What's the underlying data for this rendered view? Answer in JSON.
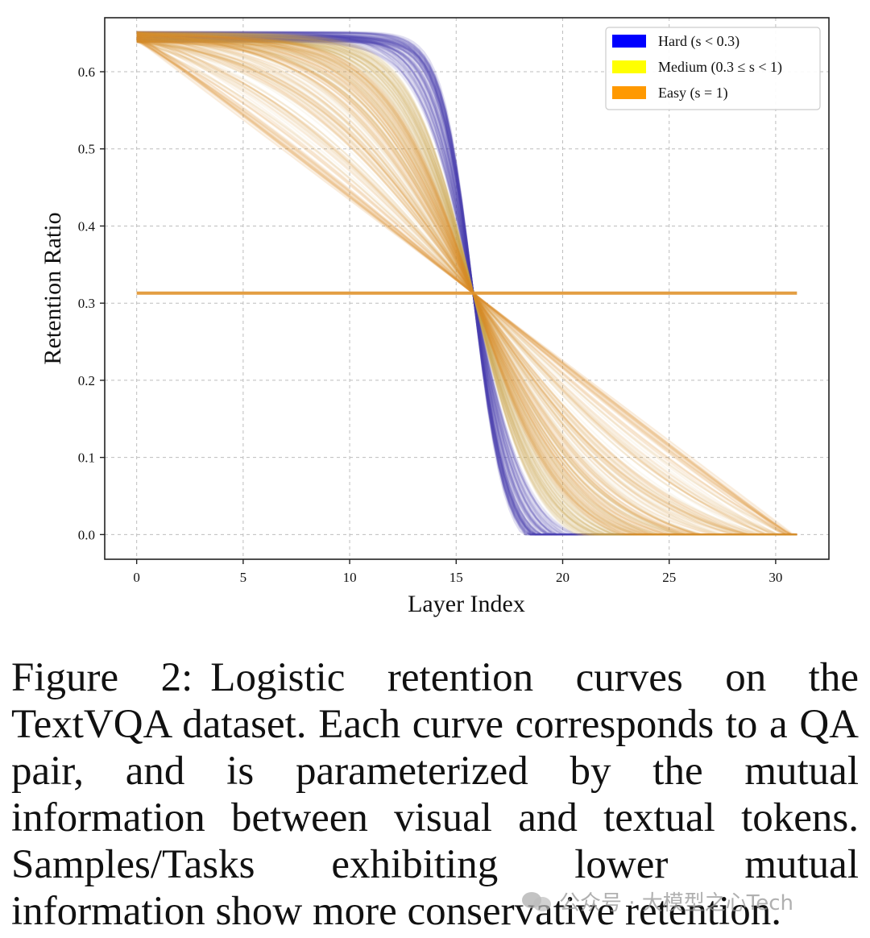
{
  "chart_data": {
    "type": "line",
    "xlabel": "Layer Index",
    "ylabel": "Retention Ratio",
    "xlim": [
      -1.5,
      32.5
    ],
    "ylim": [
      -0.032,
      0.67
    ],
    "x_ticks": [
      0,
      5,
      10,
      15,
      20,
      25,
      30
    ],
    "y_ticks": [
      0.0,
      0.1,
      0.2,
      0.3,
      0.4,
      0.5,
      0.6
    ],
    "x_tick_labels": [
      "0",
      "5",
      "10",
      "15",
      "20",
      "25",
      "30"
    ],
    "y_tick_labels": [
      "0.0",
      "0.1",
      "0.2",
      "0.3",
      "0.4",
      "0.5",
      "0.6"
    ],
    "grid": true,
    "legend": {
      "position": "top-right",
      "entries": [
        {
          "label": "Hard (s < 0.3)",
          "color": "#0000ff"
        },
        {
          "label": "Medium (0.3 ≤ s < 1)",
          "color": "#ffff00"
        },
        {
          "label": "Easy (s = 1)",
          "color": "#ff9900"
        }
      ]
    },
    "curve_model": {
      "form": "logistic",
      "layers": [
        0,
        31
      ],
      "midpoint_layer": 15.8,
      "midpoint_ratio": 0.313,
      "start_ratio_range": [
        0.313,
        0.652
      ],
      "end_ratio_range": [
        0.0,
        0.313
      ]
    },
    "series": [
      {
        "name": "Hard (s < 0.3)",
        "color": "#4a3fb0",
        "curve_count": 120,
        "steepness_range": [
          0.75,
          1.4
        ],
        "opacity": 0.09
      },
      {
        "name": "Medium (0.3 ≤ s < 1)",
        "color": "#c9a24a",
        "curve_count": 140,
        "steepness_range": [
          0.12,
          0.7
        ],
        "opacity": 0.08
      },
      {
        "name": "Easy (s = 1)",
        "color": "#e0932e",
        "curve_count": 140,
        "steepness_range": [
          0.0,
          0.5
        ],
        "opacity": 0.09
      }
    ]
  },
  "caption": {
    "label": "Figure 2:",
    "text": "Logistic retention curves on the TextVQA dataset. Each curve corresponds to a QA pair, and is parameterized by the mutual information between visual and textual tokens. Samples/Tasks exhibiting lower mutual information show more conservative retention."
  },
  "watermark": {
    "text": "公众号 · 大模型之心Tech"
  }
}
